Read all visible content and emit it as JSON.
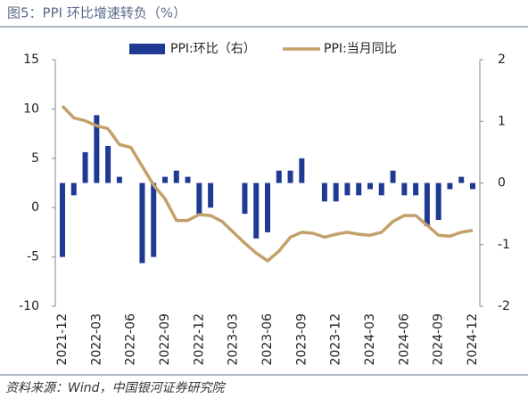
{
  "chart_data": {
    "type": "bar_line",
    "title": "图5：PPI 环比增速转负（%）",
    "source": "资料来源：Wind，中国银河证券研究院",
    "categories": [
      "2021-12",
      null,
      null,
      "2022-03",
      null,
      null,
      "2022-06",
      null,
      null,
      "2022-09",
      null,
      null,
      "2022-12",
      null,
      null,
      "2023-03",
      null,
      null,
      "2023-06",
      null,
      null,
      "2023-09",
      null,
      null,
      "2023-12",
      null,
      null,
      "2024-03",
      null,
      null,
      "2024-06",
      null,
      null,
      "2024-09",
      null,
      null,
      "2024-12"
    ],
    "series": [
      {
        "name": "PPI:环比（右）",
        "type": "bar",
        "axis": "y2",
        "color": "#1f3a93",
        "values": [
          -1.2,
          -0.2,
          0.5,
          1.1,
          0.6,
          0.1,
          0.0,
          -1.3,
          -1.2,
          0.1,
          0.2,
          0.1,
          -0.5,
          -0.4,
          0.0,
          0.0,
          -0.5,
          -0.9,
          -0.8,
          0.2,
          0.2,
          0.4,
          0.0,
          -0.3,
          -0.3,
          -0.2,
          -0.2,
          -0.1,
          -0.2,
          0.2,
          -0.2,
          -0.2,
          -0.7,
          -0.6,
          -0.1,
          0.1,
          -0.1
        ]
      },
      {
        "name": "PPI:当月同比",
        "type": "line",
        "color": "#c4a06a",
        "values": [
          10.3,
          9.1,
          8.8,
          8.3,
          8.0,
          6.4,
          6.1,
          4.2,
          2.3,
          0.9,
          -1.3,
          -1.3,
          -0.7,
          -0.8,
          -1.4,
          -2.5,
          -3.6,
          -4.6,
          -5.4,
          -4.4,
          -3.0,
          -2.5,
          -2.6,
          -3.0,
          -2.7,
          -2.5,
          -2.7,
          -2.8,
          -2.5,
          -1.4,
          -0.8,
          -0.8,
          -1.8,
          -2.8,
          -2.9,
          -2.5,
          -2.3
        ]
      }
    ],
    "ylim": [
      -10,
      15
    ],
    "yticks": [
      -10,
      -5,
      0,
      5,
      10,
      15
    ],
    "y2lim": [
      -2,
      2
    ],
    "y2ticks": [
      -2,
      -1,
      0,
      1,
      2
    ]
  }
}
